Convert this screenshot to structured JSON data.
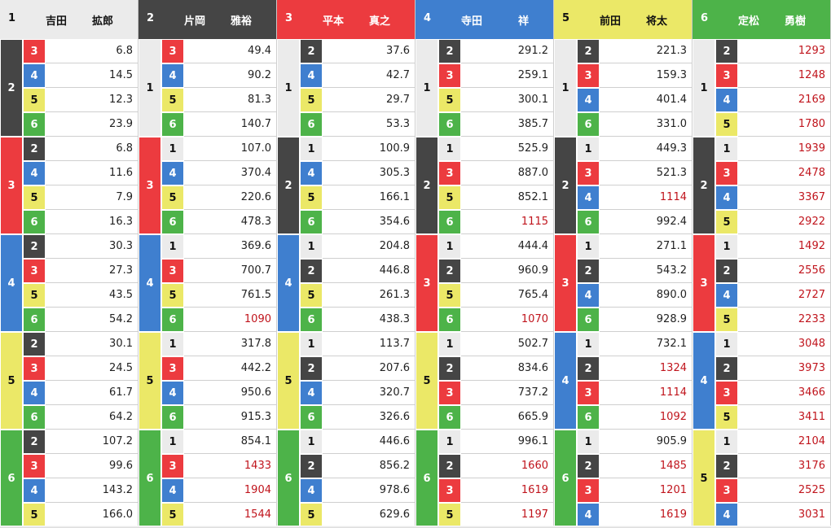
{
  "colors": {
    "1": {
      "bg": "#ebebeb",
      "fg": "#111111"
    },
    "2": {
      "bg": "#454545",
      "fg": "#ffffff"
    },
    "3": {
      "bg": "#ec3b3f",
      "fg": "#ffffff"
    },
    "4": {
      "bg": "#3f7fcf",
      "fg": "#ffffff"
    },
    "5": {
      "bg": "#ebe867",
      "fg": "#111111"
    },
    "6": {
      "bg": "#4db349",
      "fg": "#ffffff"
    },
    "high_odds_text": "#c0141c"
  },
  "panels": [
    {
      "num": "1",
      "family": "吉田",
      "given": "拡郎",
      "groups": [
        {
          "second": "2",
          "rows": [
            [
              "3",
              "6.8"
            ],
            [
              "4",
              "14.5"
            ],
            [
              "5",
              "12.3"
            ],
            [
              "6",
              "23.9"
            ]
          ]
        },
        {
          "second": "3",
          "rows": [
            [
              "2",
              "6.8"
            ],
            [
              "4",
              "11.6"
            ],
            [
              "5",
              "7.9"
            ],
            [
              "6",
              "16.3"
            ]
          ]
        },
        {
          "second": "4",
          "rows": [
            [
              "2",
              "30.3"
            ],
            [
              "3",
              "27.3"
            ],
            [
              "5",
              "43.5"
            ],
            [
              "6",
              "54.2"
            ]
          ]
        },
        {
          "second": "5",
          "rows": [
            [
              "2",
              "30.1"
            ],
            [
              "3",
              "24.5"
            ],
            [
              "4",
              "61.7"
            ],
            [
              "6",
              "64.2"
            ]
          ]
        },
        {
          "second": "6",
          "rows": [
            [
              "2",
              "107.2"
            ],
            [
              "3",
              "99.6"
            ],
            [
              "4",
              "143.2"
            ],
            [
              "5",
              "166.0"
            ]
          ]
        }
      ]
    },
    {
      "num": "2",
      "family": "片岡",
      "given": "雅裕",
      "groups": [
        {
          "second": "1",
          "rows": [
            [
              "3",
              "49.4"
            ],
            [
              "4",
              "90.2"
            ],
            [
              "5",
              "81.3"
            ],
            [
              "6",
              "140.7"
            ]
          ]
        },
        {
          "second": "3",
          "rows": [
            [
              "1",
              "107.0"
            ],
            [
              "4",
              "370.4"
            ],
            [
              "5",
              "220.6"
            ],
            [
              "6",
              "478.3"
            ]
          ]
        },
        {
          "second": "4",
          "rows": [
            [
              "1",
              "369.6"
            ],
            [
              "3",
              "700.7"
            ],
            [
              "5",
              "761.5"
            ],
            [
              "6",
              "1090"
            ]
          ]
        },
        {
          "second": "5",
          "rows": [
            [
              "1",
              "317.8"
            ],
            [
              "3",
              "442.2"
            ],
            [
              "4",
              "950.6"
            ],
            [
              "6",
              "915.3"
            ]
          ]
        },
        {
          "second": "6",
          "rows": [
            [
              "1",
              "854.1"
            ],
            [
              "3",
              "1433"
            ],
            [
              "4",
              "1904"
            ],
            [
              "5",
              "1544"
            ]
          ]
        }
      ]
    },
    {
      "num": "3",
      "family": "平本",
      "given": "真之",
      "groups": [
        {
          "second": "1",
          "rows": [
            [
              "2",
              "37.6"
            ],
            [
              "4",
              "42.7"
            ],
            [
              "5",
              "29.7"
            ],
            [
              "6",
              "53.3"
            ]
          ]
        },
        {
          "second": "2",
          "rows": [
            [
              "1",
              "100.9"
            ],
            [
              "4",
              "305.3"
            ],
            [
              "5",
              "166.1"
            ],
            [
              "6",
              "354.6"
            ]
          ]
        },
        {
          "second": "4",
          "rows": [
            [
              "1",
              "204.8"
            ],
            [
              "2",
              "446.8"
            ],
            [
              "5",
              "261.3"
            ],
            [
              "6",
              "438.3"
            ]
          ]
        },
        {
          "second": "5",
          "rows": [
            [
              "1",
              "113.7"
            ],
            [
              "2",
              "207.6"
            ],
            [
              "4",
              "320.7"
            ],
            [
              "6",
              "326.6"
            ]
          ]
        },
        {
          "second": "6",
          "rows": [
            [
              "1",
              "446.6"
            ],
            [
              "2",
              "856.2"
            ],
            [
              "4",
              "978.6"
            ],
            [
              "5",
              "629.6"
            ]
          ]
        }
      ]
    },
    {
      "num": "4",
      "family": "寺田",
      "given": "祥",
      "groups": [
        {
          "second": "1",
          "rows": [
            [
              "2",
              "291.2"
            ],
            [
              "3",
              "259.1"
            ],
            [
              "5",
              "300.1"
            ],
            [
              "6",
              "385.7"
            ]
          ]
        },
        {
          "second": "2",
          "rows": [
            [
              "1",
              "525.9"
            ],
            [
              "3",
              "887.0"
            ],
            [
              "5",
              "852.1"
            ],
            [
              "6",
              "1115"
            ]
          ]
        },
        {
          "second": "3",
          "rows": [
            [
              "1",
              "444.4"
            ],
            [
              "2",
              "960.9"
            ],
            [
              "5",
              "765.4"
            ],
            [
              "6",
              "1070"
            ]
          ]
        },
        {
          "second": "5",
          "rows": [
            [
              "1",
              "502.7"
            ],
            [
              "2",
              "834.6"
            ],
            [
              "3",
              "737.2"
            ],
            [
              "6",
              "665.9"
            ]
          ]
        },
        {
          "second": "6",
          "rows": [
            [
              "1",
              "996.1"
            ],
            [
              "2",
              "1660"
            ],
            [
              "3",
              "1619"
            ],
            [
              "5",
              "1197"
            ]
          ]
        }
      ]
    },
    {
      "num": "5",
      "family": "前田",
      "given": "将太",
      "groups": [
        {
          "second": "1",
          "rows": [
            [
              "2",
              "221.3"
            ],
            [
              "3",
              "159.3"
            ],
            [
              "4",
              "401.4"
            ],
            [
              "6",
              "331.0"
            ]
          ]
        },
        {
          "second": "2",
          "rows": [
            [
              "1",
              "449.3"
            ],
            [
              "3",
              "521.3"
            ],
            [
              "4",
              "1114"
            ],
            [
              "6",
              "992.4"
            ]
          ]
        },
        {
          "second": "3",
          "rows": [
            [
              "1",
              "271.1"
            ],
            [
              "2",
              "543.2"
            ],
            [
              "4",
              "890.0"
            ],
            [
              "6",
              "928.9"
            ]
          ]
        },
        {
          "second": "4",
          "rows": [
            [
              "1",
              "732.1"
            ],
            [
              "2",
              "1324"
            ],
            [
              "3",
              "1114"
            ],
            [
              "6",
              "1092"
            ]
          ]
        },
        {
          "second": "6",
          "rows": [
            [
              "1",
              "905.9"
            ],
            [
              "2",
              "1485"
            ],
            [
              "3",
              "1201"
            ],
            [
              "4",
              "1619"
            ]
          ]
        }
      ]
    },
    {
      "num": "6",
      "family": "定松",
      "given": "勇樹",
      "groups": [
        {
          "second": "1",
          "rows": [
            [
              "2",
              "1293"
            ],
            [
              "3",
              "1248"
            ],
            [
              "4",
              "2169"
            ],
            [
              "5",
              "1780"
            ]
          ]
        },
        {
          "second": "2",
          "rows": [
            [
              "1",
              "1939"
            ],
            [
              "3",
              "2478"
            ],
            [
              "4",
              "3367"
            ],
            [
              "5",
              "2922"
            ]
          ]
        },
        {
          "second": "3",
          "rows": [
            [
              "1",
              "1492"
            ],
            [
              "2",
              "2556"
            ],
            [
              "4",
              "2727"
            ],
            [
              "5",
              "2233"
            ]
          ]
        },
        {
          "second": "4",
          "rows": [
            [
              "1",
              "3048"
            ],
            [
              "2",
              "3973"
            ],
            [
              "3",
              "3466"
            ],
            [
              "5",
              "3411"
            ]
          ]
        },
        {
          "second": "5",
          "rows": [
            [
              "1",
              "2104"
            ],
            [
              "2",
              "3176"
            ],
            [
              "3",
              "2525"
            ],
            [
              "4",
              "3031"
            ]
          ]
        }
      ]
    }
  ]
}
